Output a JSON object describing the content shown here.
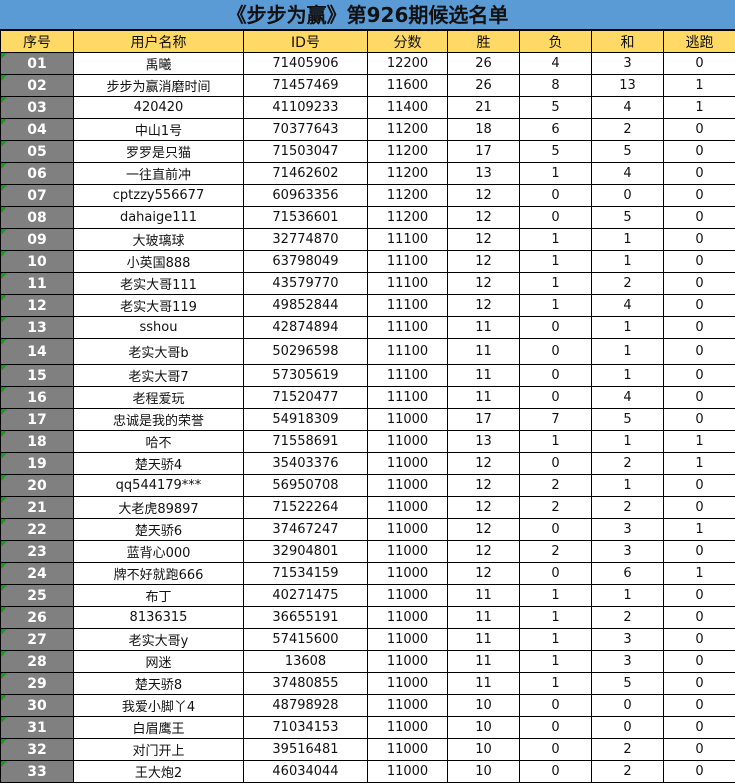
{
  "title": "《步步为赢》第926期候选名单",
  "headers": [
    "序号",
    "用户名称",
    "ID号",
    "分数",
    "胜",
    "负",
    "和",
    "逃跑"
  ],
  "rows": [
    [
      "01",
      "禹曦",
      "71405906",
      "12200",
      "26",
      "4",
      "3",
      "0"
    ],
    [
      "02",
      "步步为赢消磨时间",
      "71457469",
      "11600",
      "26",
      "8",
      "13",
      "1"
    ],
    [
      "03",
      "420420",
      "41109233",
      "11400",
      "21",
      "5",
      "4",
      "1"
    ],
    [
      "04",
      "中山1号",
      "70377643",
      "11200",
      "18",
      "6",
      "2",
      "0"
    ],
    [
      "05",
      "罗罗是只猫",
      "71503047",
      "11200",
      "17",
      "5",
      "5",
      "0"
    ],
    [
      "06",
      "一往直前冲",
      "71462602",
      "11200",
      "13",
      "1",
      "4",
      "0"
    ],
    [
      "07",
      "cptzzy556677",
      "60963356",
      "11200",
      "12",
      "0",
      "0",
      "0"
    ],
    [
      "08",
      "dahaige111",
      "71536601",
      "11200",
      "12",
      "0",
      "5",
      "0"
    ],
    [
      "09",
      "大玻璃球",
      "32774870",
      "11100",
      "12",
      "1",
      "1",
      "0"
    ],
    [
      "10",
      "小英国888",
      "63798049",
      "11100",
      "12",
      "1",
      "1",
      "0"
    ],
    [
      "11",
      "老实大哥111",
      "43579770",
      "11100",
      "12",
      "1",
      "2",
      "0"
    ],
    [
      "12",
      "老实大哥119",
      "49852844",
      "11100",
      "12",
      "1",
      "4",
      "0"
    ],
    [
      "13",
      "sshou",
      "42874894",
      "11100",
      "11",
      "0",
      "1",
      "0"
    ],
    [
      "14",
      "老实大哥b",
      "50296598",
      "11100",
      "11",
      "0",
      "1",
      "0"
    ],
    [
      "15",
      "老实大哥7",
      "57305619",
      "11100",
      "11",
      "0",
      "1",
      "0"
    ],
    [
      "16",
      "老程爱玩",
      "71520477",
      "11100",
      "11",
      "0",
      "4",
      "0"
    ],
    [
      "17",
      "忠诚是我的荣誉",
      "54918309",
      "11000",
      "17",
      "7",
      "5",
      "0"
    ],
    [
      "18",
      "哈不",
      "71558691",
      "11000",
      "13",
      "1",
      "1",
      "1"
    ],
    [
      "19",
      "楚天骄4",
      "35403376",
      "11000",
      "12",
      "0",
      "2",
      "1"
    ],
    [
      "20",
      "qq544179***",
      "56950708",
      "11000",
      "12",
      "2",
      "1",
      "0"
    ],
    [
      "21",
      "大老虎89897",
      "71522264",
      "11000",
      "12",
      "2",
      "2",
      "0"
    ],
    [
      "22",
      "楚天骄6",
      "37467247",
      "11000",
      "12",
      "0",
      "3",
      "1"
    ],
    [
      "23",
      "蓝背心000",
      "32904801",
      "11000",
      "12",
      "2",
      "3",
      "0"
    ],
    [
      "24",
      "牌不好就跑666",
      "71534159",
      "11000",
      "12",
      "0",
      "6",
      "1"
    ],
    [
      "25",
      "布丁",
      "40271475",
      "11000",
      "11",
      "1",
      "1",
      "0"
    ],
    [
      "26",
      "8136315",
      "36655191",
      "11000",
      "11",
      "1",
      "2",
      "0"
    ],
    [
      "27",
      "老实大哥y",
      "57415600",
      "11000",
      "11",
      "1",
      "3",
      "0"
    ],
    [
      "28",
      "网迷",
      "13608",
      "11000",
      "11",
      "1",
      "3",
      "0"
    ],
    [
      "29",
      "楚天骄8",
      "37480855",
      "11000",
      "11",
      "1",
      "5",
      "0"
    ],
    [
      "30",
      "我爱小脚丫4",
      "48798928",
      "11000",
      "10",
      "0",
      "0",
      "0"
    ],
    [
      "31",
      "白眉鹰王",
      "71034153",
      "11000",
      "10",
      "0",
      "0",
      "0"
    ],
    [
      "32",
      "对门开上",
      "39516481",
      "11000",
      "10",
      "0",
      "2",
      "0"
    ],
    [
      "33",
      "王大炮2",
      "46034044",
      "11000",
      "10",
      "0",
      "2",
      "0"
    ]
  ]
}
